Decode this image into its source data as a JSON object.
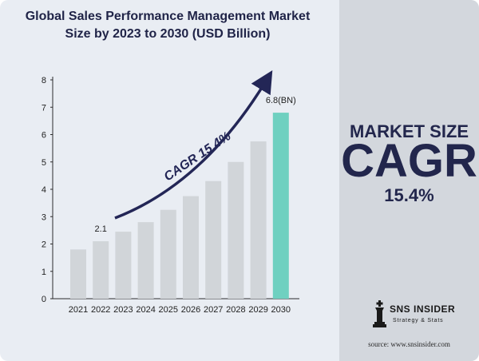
{
  "title_line1": "Global Sales Performance Management Market",
  "title_line2": "Size by 2023 to 2030 (USD Billion)",
  "side": {
    "market_size_label": "MARKET SIZE",
    "cagr_label": "CAGR",
    "cagr_value": "15.4%"
  },
  "logo": {
    "name": "SNS INSIDER",
    "tagline": "Strategy & Stats"
  },
  "source": "source: www.snsinsider.com",
  "colors": {
    "bar": "#d1d5d9",
    "highlight_bar": "#6fd0c0",
    "text_dark": "#1f2347",
    "arrow": "#232656",
    "side_panel": "#d3d7dd"
  },
  "chart_data": {
    "type": "bar",
    "categories": [
      "2021",
      "2022",
      "2023",
      "2024",
      "2025",
      "2026",
      "2027",
      "2028",
      "2029",
      "2030"
    ],
    "values": [
      1.8,
      2.1,
      2.45,
      2.8,
      3.25,
      3.75,
      4.3,
      5.0,
      5.75,
      6.8
    ],
    "highlight_index": 9,
    "ylim": [
      0,
      8
    ],
    "yticks": [
      "0",
      "1",
      "2",
      "3",
      "4",
      "5",
      "6",
      "7",
      "8"
    ],
    "data_labels": [
      {
        "index": 1,
        "text": "2.1"
      },
      {
        "index": 9,
        "text": "6.8(BN)"
      }
    ],
    "annotation": "CAGR 15.4%",
    "grid": false
  }
}
